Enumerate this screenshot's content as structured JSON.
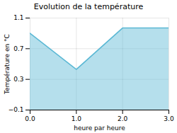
{
  "chart_data": {
    "type": "area",
    "title": "Evolution de la température",
    "xlabel": "heure par heure",
    "ylabel": "Température en °C",
    "x": [
      0,
      1,
      2,
      3
    ],
    "values": [
      0.9,
      0.43,
      0.97,
      0.97
    ],
    "color": "#5bb8d4",
    "xlim": [
      0,
      3
    ],
    "ylim": [
      -0.1,
      1.1
    ],
    "xticks": [
      0,
      1,
      2,
      3
    ],
    "yticks": [
      -0.1,
      0.3,
      0.7,
      1.1
    ],
    "grid": true
  }
}
